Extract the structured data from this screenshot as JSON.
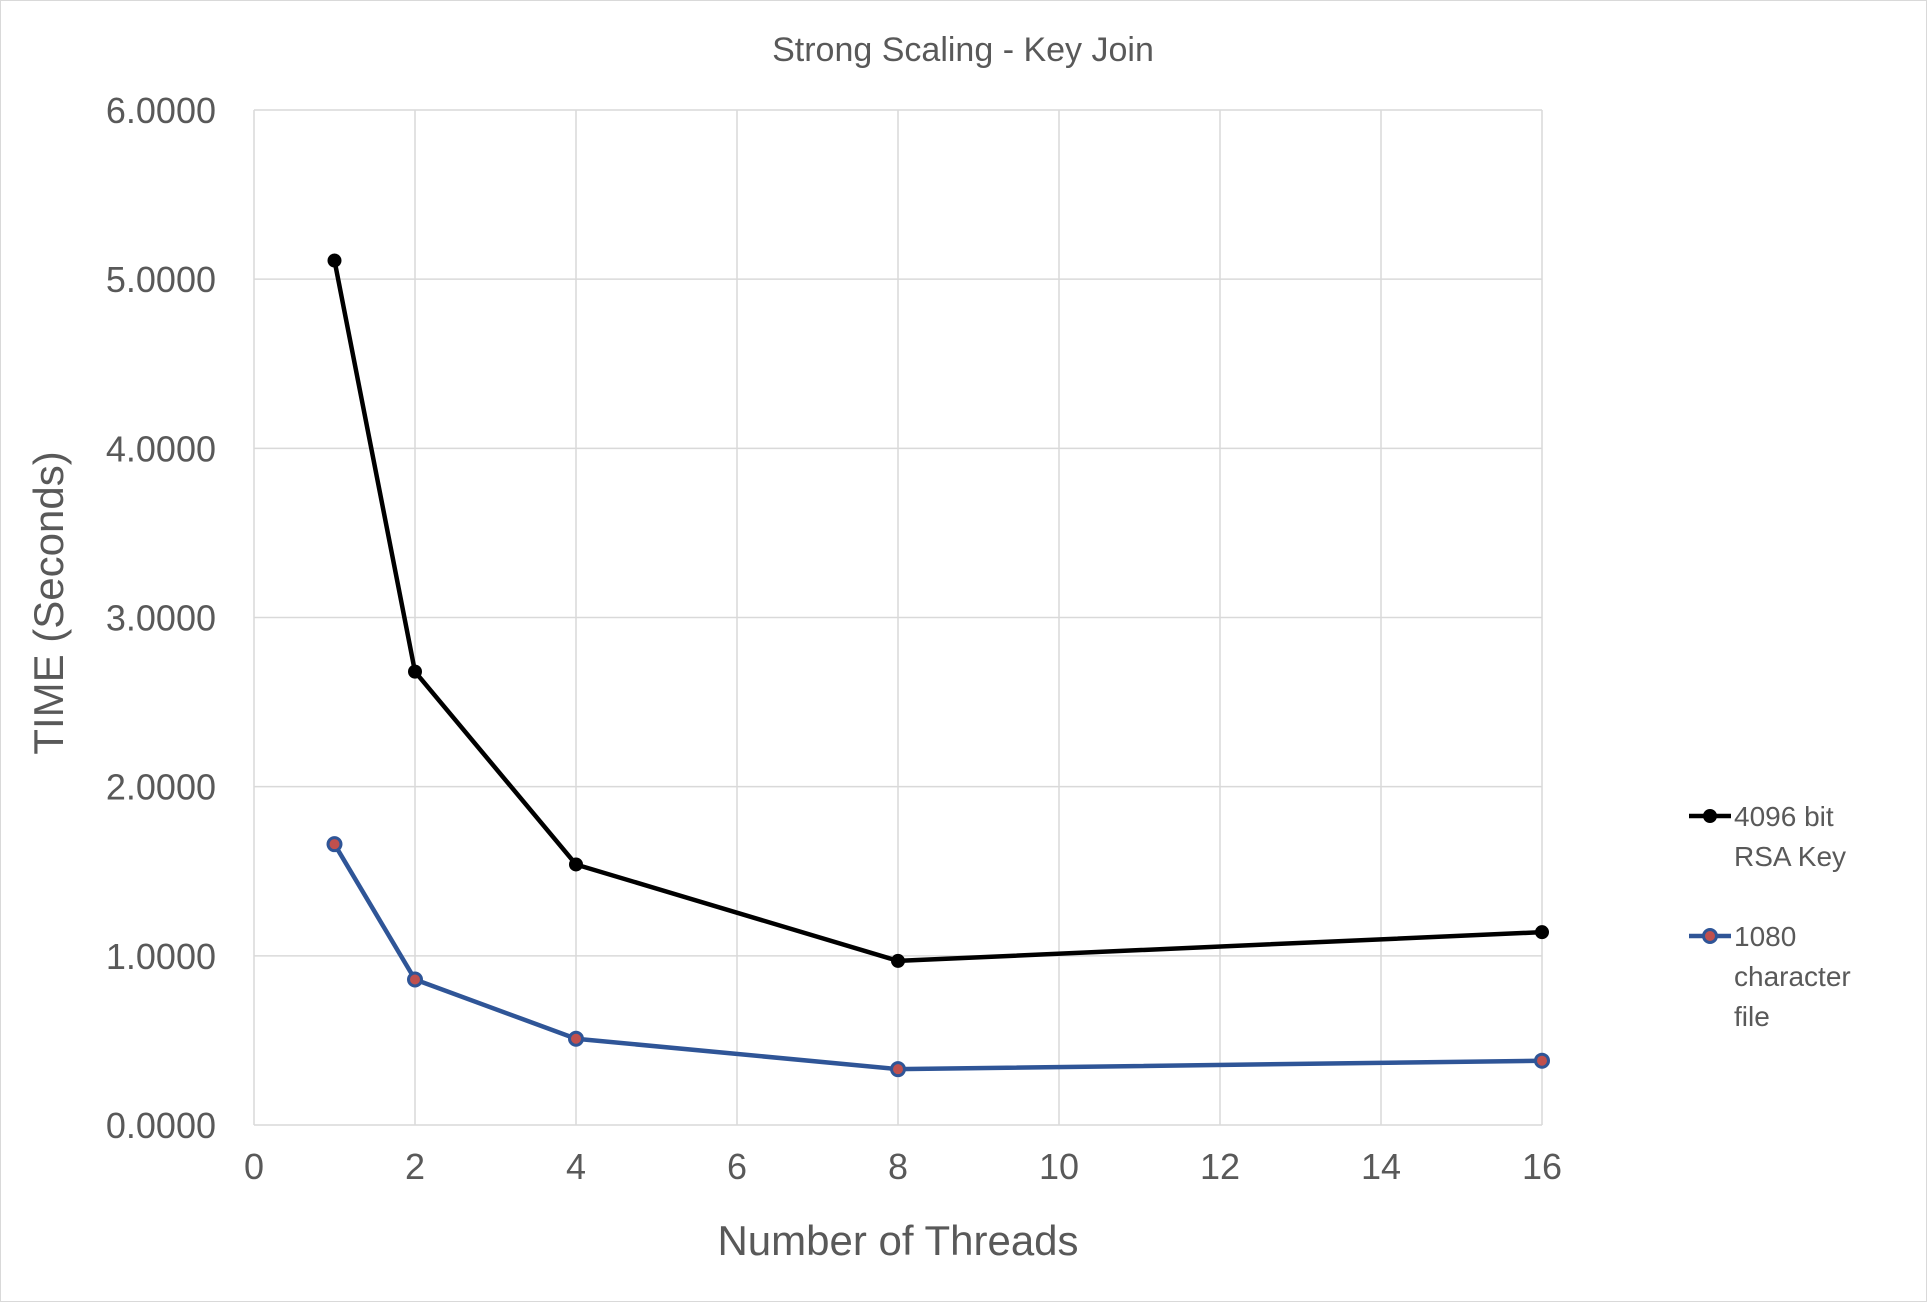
{
  "chart_data": {
    "type": "line",
    "title": "Strong Scaling - Key Join",
    "xlabel": "Number of Threads",
    "ylabel": "TIME (Seconds)",
    "xlim": [
      0,
      16
    ],
    "ylim": [
      0,
      6
    ],
    "x_ticks": [
      "0",
      "2",
      "4",
      "6",
      "8",
      "10",
      "12",
      "14",
      "16"
    ],
    "x_tick_values": [
      0,
      2,
      4,
      6,
      8,
      10,
      12,
      14,
      16
    ],
    "y_ticks": [
      "0.0000",
      "1.0000",
      "2.0000",
      "3.0000",
      "4.0000",
      "5.0000",
      "6.0000"
    ],
    "y_tick_values": [
      0,
      1,
      2,
      3,
      4,
      5,
      6
    ],
    "grid": true,
    "legend_position": "right",
    "series": [
      {
        "name_lines": [
          "4096 bit",
          "RSA Key"
        ],
        "color": "#000000",
        "marker_fill": "#000000",
        "x": [
          1,
          2,
          4,
          8,
          16
        ],
        "y": [
          5.11,
          2.68,
          1.54,
          0.97,
          1.14
        ]
      },
      {
        "name_lines": [
          "1080",
          "character",
          "file"
        ],
        "color": "#2f5597",
        "marker_fill": "#c0504d",
        "x": [
          1,
          2,
          4,
          8,
          16
        ],
        "y": [
          1.66,
          0.86,
          0.51,
          0.33,
          0.38
        ]
      }
    ]
  }
}
